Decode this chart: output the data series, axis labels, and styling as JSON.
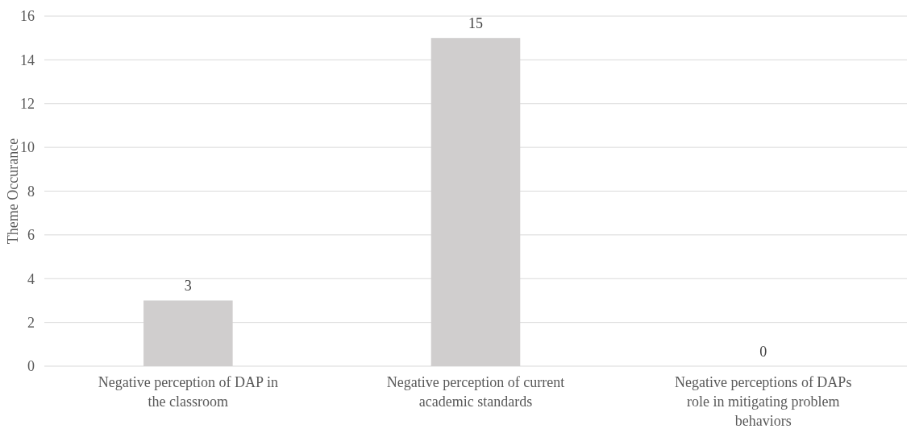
{
  "chart_data": {
    "type": "bar",
    "ylabel": "Theme Occurance",
    "categories": [
      "Negative perception of DAP in the classroom",
      "Negative perception of current academic standards",
      "Negative perceptions of DAPs role in mitigating problem behaviors"
    ],
    "values": [
      3,
      15,
      0
    ],
    "color": "#d0cece",
    "ylim": [
      0,
      16
    ],
    "yticks": [
      0,
      2,
      4,
      6,
      8,
      10,
      12,
      14,
      16
    ],
    "grid": "y",
    "data_labels": true
  }
}
